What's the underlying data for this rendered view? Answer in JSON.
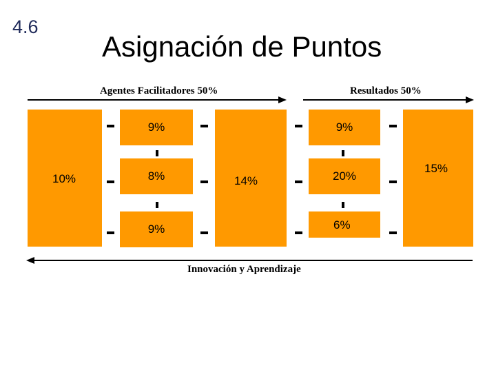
{
  "slide_number": "4.6",
  "title": "Asignación de Puntos",
  "top_left_label": "Agentes Facilitadores 50%",
  "top_right_label": "Resultados 50%",
  "bottom_label": "Innovación y Aprendizaje",
  "box_fill": "#ff9900",
  "boxes": {
    "liderazgo": "10%",
    "personas": "9%",
    "politica": "8%",
    "recursos": "9%",
    "procesos": "14%",
    "resultados_personas": "9%",
    "resultados_clientes": "20%",
    "resultados_sociedad": "6%",
    "resultados_clave": "15%"
  }
}
